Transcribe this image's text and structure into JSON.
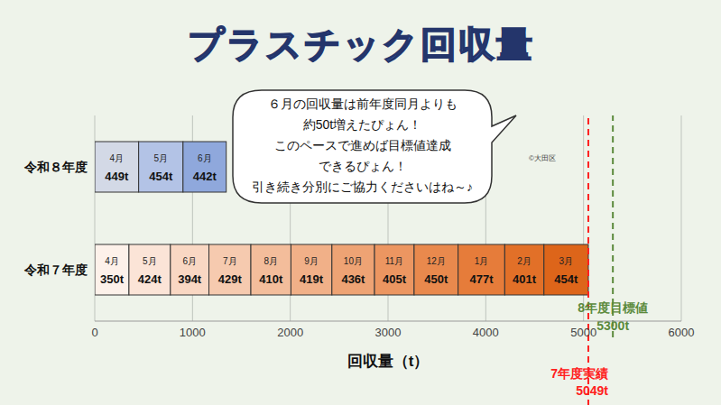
{
  "chart_data": {
    "type": "bar",
    "title": "プラスチック回収量",
    "orientation": "horizontal",
    "stacked": true,
    "data_labels": true,
    "grid": true,
    "categories": [
      "令和８年度",
      "令和７年度"
    ],
    "xlabel": "回収量（t）",
    "xlim": [
      0,
      6000
    ],
    "xticks": [
      0,
      1000,
      2000,
      3000,
      4000,
      5000,
      6000
    ],
    "series": [
      {
        "name": "4月",
        "colors": [
          "#d3d9e6",
          "#fdf1ea"
        ],
        "values": [
          449,
          350
        ],
        "value_labels": [
          "449t",
          "350t"
        ]
      },
      {
        "name": "5月",
        "colors": [
          "#b3c3e6",
          "#fbe4d7"
        ],
        "values": [
          454,
          424
        ],
        "value_labels": [
          "454t",
          "424t"
        ]
      },
      {
        "name": "6月",
        "colors": [
          "#8fa8dc",
          "#f9d7c3"
        ],
        "values": [
          442,
          394
        ],
        "value_labels": [
          "442t",
          "394t"
        ]
      },
      {
        "name": "7月",
        "colors": [
          "#8fa8dc",
          "#f6caaf"
        ],
        "values": [
          null,
          429
        ],
        "value_labels": [
          null,
          "429t"
        ]
      },
      {
        "name": "8月",
        "colors": [
          "#8fa8dc",
          "#f3bd9b"
        ],
        "values": [
          null,
          410
        ],
        "value_labels": [
          null,
          "410t"
        ]
      },
      {
        "name": "9月",
        "colors": [
          "#8fa8dc",
          "#f1b088"
        ],
        "values": [
          null,
          419
        ],
        "value_labels": [
          null,
          "419t"
        ]
      },
      {
        "name": "10月",
        "colors": [
          "#8fa8dc",
          "#eea374"
        ],
        "values": [
          null,
          436
        ],
        "value_labels": [
          null,
          "436t"
        ]
      },
      {
        "name": "11月",
        "colors": [
          "#8fa8dc",
          "#ec9661"
        ],
        "values": [
          null,
          405
        ],
        "value_labels": [
          null,
          "405t"
        ]
      },
      {
        "name": "12月",
        "colors": [
          "#8fa8dc",
          "#e9894d"
        ],
        "values": [
          null,
          450
        ],
        "value_labels": [
          null,
          "450t"
        ]
      },
      {
        "name": "1月",
        "colors": [
          "#8fa8dc",
          "#e67c3a"
        ],
        "values": [
          null,
          477
        ],
        "value_labels": [
          null,
          "477t"
        ]
      },
      {
        "name": "2月",
        "colors": [
          "#8fa8dc",
          "#e27028"
        ],
        "values": [
          null,
          401
        ],
        "value_labels": [
          null,
          "401t"
        ]
      },
      {
        "name": "3月",
        "colors": [
          "#8fa8dc",
          "#dd651a"
        ],
        "values": [
          null,
          454
        ],
        "value_labels": [
          null,
          "454t"
        ]
      }
    ],
    "reference_lines": [
      {
        "value": 5049,
        "label": "7年度実績",
        "value_label": "5049t",
        "color": "#ff2020",
        "line_style": "dashed"
      },
      {
        "value": 5300,
        "label": "8年度目標値",
        "value_label": "5300t",
        "color": "#5b8a3c",
        "line_style": "dashed"
      }
    ],
    "annotations": [
      "６月の回収量は前年度同月よりも",
      "約50t増えたぴょん！",
      "このペースで進めば目標値達成",
      "できるぴょん！",
      "引き続き分別にご協力くださいはね～♪"
    ],
    "credit": "©大田区"
  }
}
